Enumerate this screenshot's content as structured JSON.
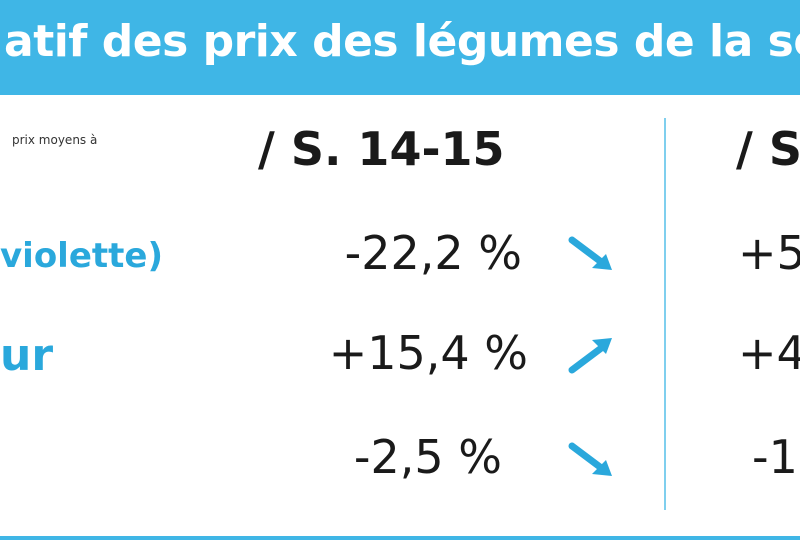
{
  "header": {
    "title": "atif des prix des légumes de la sem"
  },
  "table": {
    "note": "prix moyens à",
    "columns": [
      "/ S. 14-15",
      "/ S"
    ],
    "rows": [
      [
        "violette)",
        "-22,2 %",
        "+5"
      ],
      [
        "ur",
        "+15,4 %",
        "+4"
      ],
      [
        "",
        "-2,5 %",
        "-1"
      ]
    ]
  }
}
